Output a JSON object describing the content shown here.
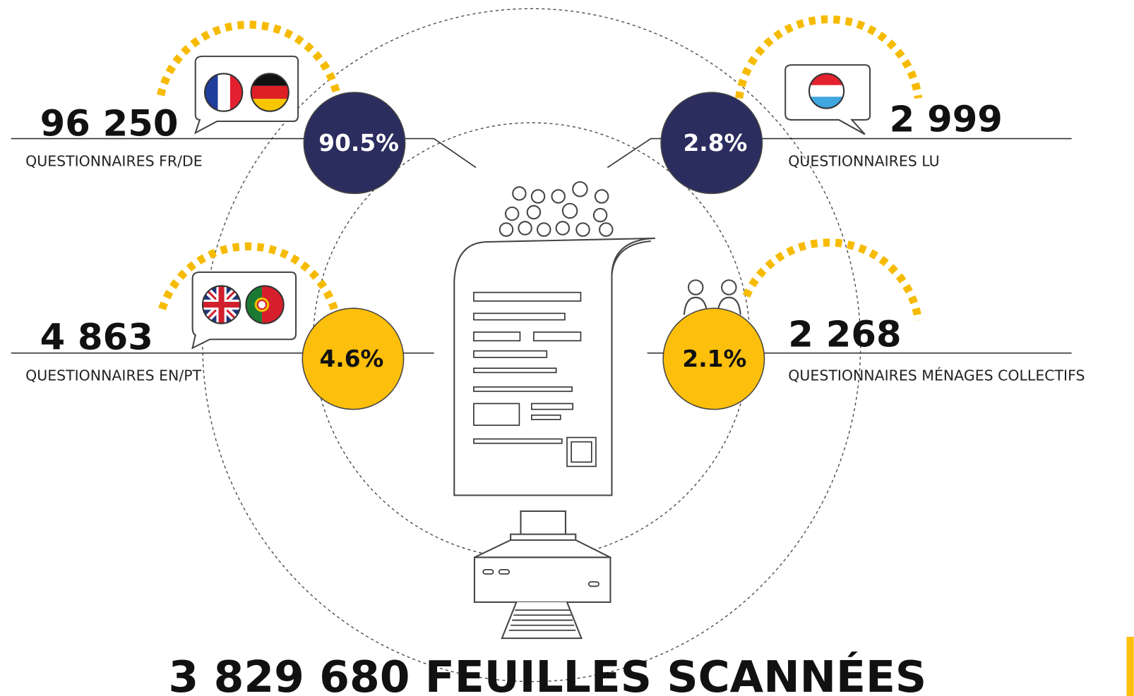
{
  "items": [
    {
      "count": "96 250",
      "label": "QUESTIONNAIRES FR/DE",
      "percent": "90.5%"
    },
    {
      "count": "2 999",
      "label": "QUESTIONNAIRES LU",
      "percent": "2.8%"
    },
    {
      "count": "4 863",
      "label": "QUESTIONNAIRES EN/PT",
      "percent": "4.6%"
    },
    {
      "count": "2 268",
      "label": "QUESTIONNAIRES MÉNAGES COLLECTIFS",
      "percent": "2.1%"
    }
  ],
  "footer": {
    "total": "3 829 680 FEUILLES SCANNÉES"
  }
}
